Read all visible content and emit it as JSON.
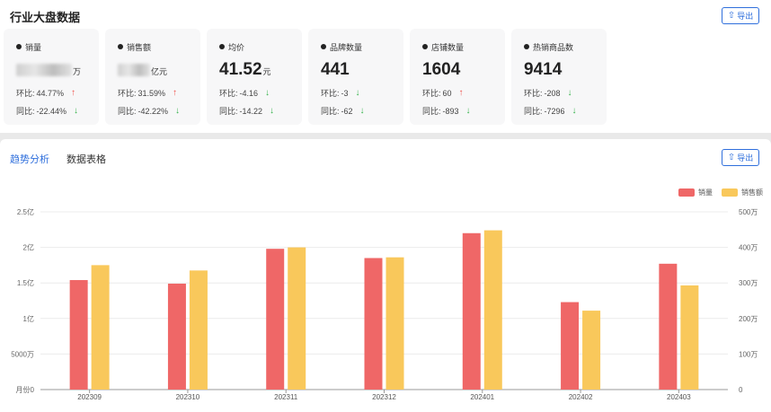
{
  "overview": {
    "title": "行业大盘数据",
    "export_label": "导出",
    "cards": [
      {
        "name": "销量",
        "value": "",
        "unit": "万",
        "blurred": true,
        "hb_label": "环比:",
        "hb_value": "44.77%",
        "hb_dir": "up",
        "tb_label": "同比:",
        "tb_value": "-22.44%",
        "tb_dir": "down"
      },
      {
        "name": "销售额",
        "value": "",
        "unit": "亿元",
        "blurred": true,
        "hb_label": "环比:",
        "hb_value": "31.59%",
        "hb_dir": "up",
        "tb_label": "同比:",
        "tb_value": "-42.22%",
        "tb_dir": "down"
      },
      {
        "name": "均价",
        "value": "41.52",
        "unit": "元",
        "blurred": false,
        "hb_label": "环比:",
        "hb_value": "-4.16",
        "hb_dir": "down",
        "tb_label": "同比:",
        "tb_value": "-14.22",
        "tb_dir": "down"
      },
      {
        "name": "品牌数量",
        "value": "441",
        "unit": "",
        "blurred": false,
        "hb_label": "环比:",
        "hb_value": "-3",
        "hb_dir": "down",
        "tb_label": "同比:",
        "tb_value": "-62",
        "tb_dir": "down"
      },
      {
        "name": "店铺数量",
        "value": "1604",
        "unit": "",
        "blurred": false,
        "hb_label": "环比:",
        "hb_value": "60",
        "hb_dir": "up",
        "tb_label": "同比:",
        "tb_value": "-893",
        "tb_dir": "down"
      },
      {
        "name": "热销商品数",
        "value": "9414",
        "unit": "",
        "blurred": false,
        "hb_label": "环比:",
        "hb_value": "-208",
        "hb_dir": "down",
        "tb_label": "同比:",
        "tb_value": "-7296",
        "tb_dir": "down"
      }
    ]
  },
  "analysis": {
    "tabs": [
      {
        "label": "趋势分析",
        "active": true
      },
      {
        "label": "数据表格",
        "active": false
      }
    ],
    "export_label": "导出"
  },
  "icons": {
    "export": "upload-icon",
    "up": "arrow-up-icon",
    "down": "arrow-down-icon"
  },
  "colors": {
    "accent": "#2f6fdc",
    "up": "#f0504a",
    "down": "#33b24a",
    "sales_volume": "#ef6767",
    "sales_amount": "#f9c85b"
  },
  "chart_data": {
    "type": "bar",
    "categories": [
      "202309",
      "202310",
      "202311",
      "202312",
      "202401",
      "202402",
      "202403"
    ],
    "series": [
      {
        "name": "销量",
        "axis": "left",
        "color": "#ef6767",
        "values": [
          154000000,
          149000000,
          198000000,
          185000000,
          220000000,
          123000000,
          177000000
        ]
      },
      {
        "name": "销售额",
        "axis": "right",
        "color": "#f9c85b",
        "values": [
          3500000,
          3350000,
          4000000,
          3720000,
          4480000,
          2220000,
          2930000
        ]
      }
    ],
    "left_axis": {
      "ticks": [
        0,
        50000000,
        100000000,
        150000000,
        200000000,
        250000000
      ],
      "tick_labels": [
        "月份0",
        "5000万",
        "1亿",
        "1.5亿",
        "2亿",
        "2.5亿"
      ],
      "range": [
        0,
        250000000
      ]
    },
    "right_axis": {
      "ticks": [
        0,
        1000000,
        2000000,
        3000000,
        4000000,
        5000000
      ],
      "tick_labels": [
        "0",
        "100万",
        "200万",
        "300万",
        "400万",
        "500万"
      ],
      "range": [
        0,
        5000000
      ]
    },
    "legend_position": "top-right",
    "grid": true
  }
}
